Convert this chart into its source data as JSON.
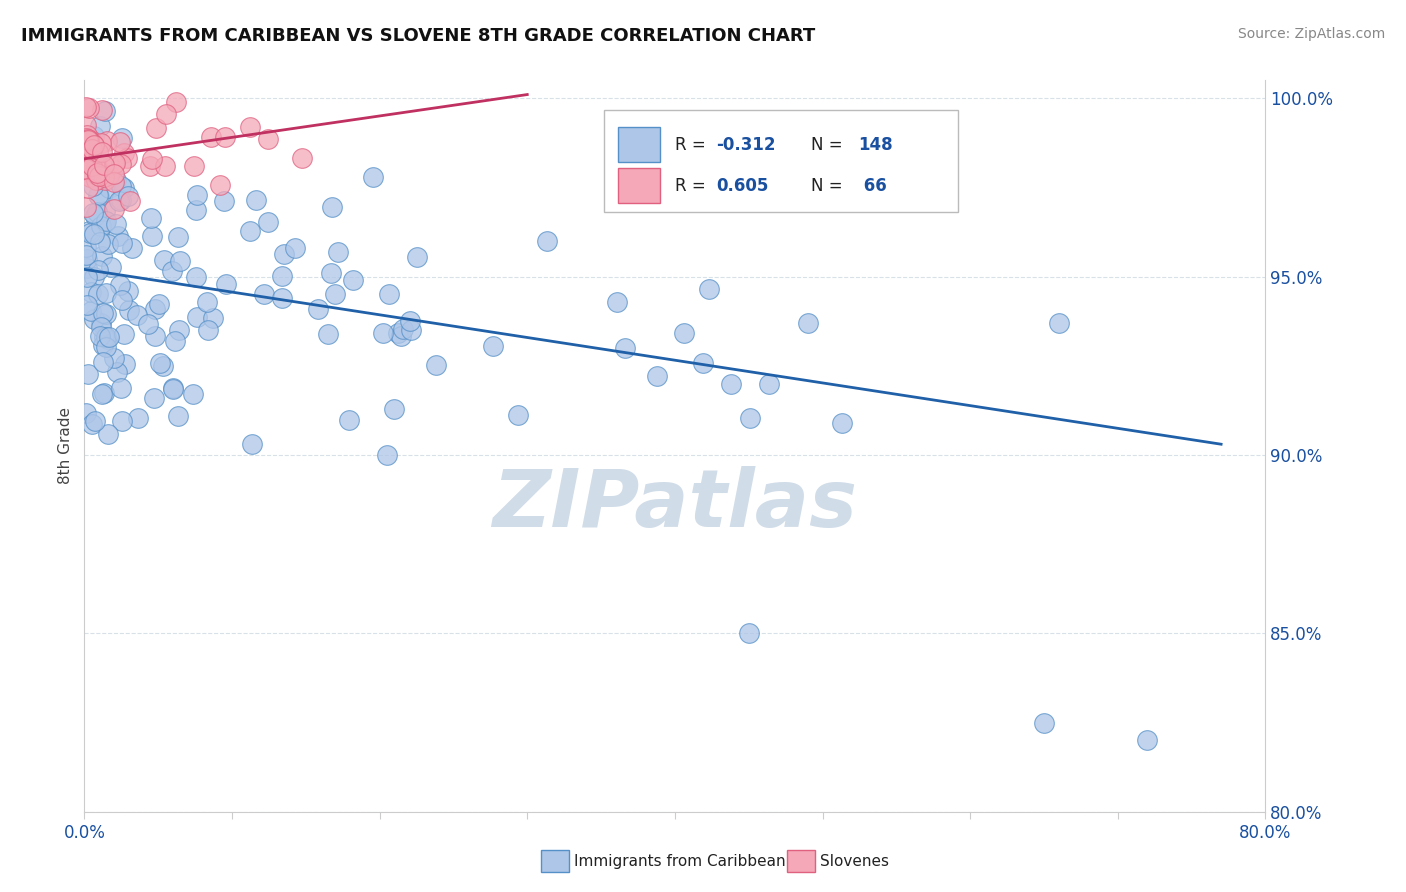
{
  "title": "IMMIGRANTS FROM CARIBBEAN VS SLOVENE 8TH GRADE CORRELATION CHART",
  "source_text": "Source: ZipAtlas.com",
  "ylabel": "8th Grade",
  "xlim": [
    0.0,
    0.8
  ],
  "ylim": [
    0.8,
    1.005
  ],
  "ytick_vals": [
    0.8,
    0.85,
    0.9,
    0.95,
    1.0
  ],
  "ytick_labels": [
    "80.0%",
    "85.0%",
    "90.0%",
    "95.0%",
    "100.0%"
  ],
  "xtick_vals": [
    0.0,
    0.1,
    0.2,
    0.3,
    0.4,
    0.5,
    0.6,
    0.7,
    0.8
  ],
  "xtick_labels": [
    "0.0%",
    "",
    "",
    "",
    "",
    "",
    "",
    "",
    "80.0%"
  ],
  "blue_R": -0.312,
  "blue_N": 148,
  "pink_R": 0.605,
  "pink_N": 66,
  "blue_color": "#aec6e8",
  "pink_color": "#f4a8b8",
  "blue_edge_color": "#5590c8",
  "pink_edge_color": "#e06080",
  "blue_line_color": "#2060a8",
  "pink_line_color": "#c03060",
  "watermark": "ZIPatlas",
  "watermark_color": "#d0dce8",
  "legend_color": "#1a50a0",
  "title_color": "#111111",
  "source_color": "#888888",
  "grid_color": "#d8e0e8",
  "blue_line_x": [
    0.0,
    0.77
  ],
  "blue_line_y": [
    0.952,
    0.903
  ],
  "pink_line_x": [
    0.0,
    0.3
  ],
  "pink_line_y": [
    0.983,
    1.001
  ]
}
